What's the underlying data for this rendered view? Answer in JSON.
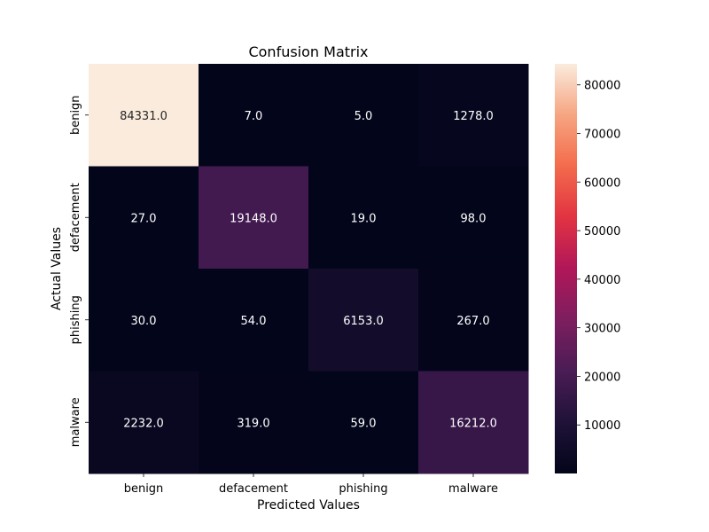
{
  "chart_data": {
    "type": "heatmap",
    "title": "Confusion Matrix",
    "xlabel": "Predicted Values",
    "ylabel": "Actual Values",
    "x_categories": [
      "benign",
      "defacement",
      "phishing",
      "malware"
    ],
    "y_categories": [
      "benign",
      "defacement",
      "phishing",
      "malware"
    ],
    "values": [
      [
        84331,
        7,
        5,
        1278
      ],
      [
        27,
        19148,
        19,
        98
      ],
      [
        30,
        54,
        6153,
        267
      ],
      [
        2232,
        319,
        59,
        16212
      ]
    ],
    "cell_labels": [
      [
        "84331.0",
        "7.0",
        "5.0",
        "1278.0"
      ],
      [
        "27.0",
        "19148.0",
        "19.0",
        "98.0"
      ],
      [
        "30.0",
        "54.0",
        "6153.0",
        "267.0"
      ],
      [
        "2232.0",
        "319.0",
        "59.0",
        "16212.0"
      ]
    ],
    "colormap": "rocket",
    "colorbar": {
      "range": [
        5,
        84331
      ],
      "ticks": [
        10000,
        20000,
        30000,
        40000,
        50000,
        60000,
        70000,
        80000
      ],
      "tick_labels": [
        "10000",
        "20000",
        "30000",
        "40000",
        "50000",
        "60000",
        "70000",
        "80000"
      ]
    },
    "grid": false
  }
}
